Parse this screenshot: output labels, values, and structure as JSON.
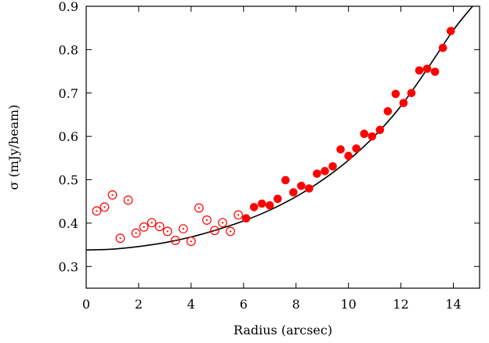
{
  "chart_data": {
    "type": "scatter",
    "xlabel": "Radius (arcsec)",
    "ylabel": "σ (mJy/beam)",
    "xlim": [
      0,
      15
    ],
    "ylim": [
      0.25,
      0.9
    ],
    "xticks": [
      0,
      2,
      4,
      6,
      8,
      10,
      12,
      14
    ],
    "yticks": [
      0.3,
      0.4,
      0.5,
      0.6,
      0.7,
      0.8,
      0.9
    ],
    "xtick_labels": [
      "0",
      "2",
      "4",
      "6",
      "8",
      "10",
      "12",
      "14"
    ],
    "ytick_labels": [
      "0.3",
      "0.4",
      "0.5",
      "0.6",
      "0.7",
      "0.8",
      "0.9"
    ],
    "grid": false,
    "legend": false,
    "marker_color": "#ff0000",
    "fit_color": "#000000",
    "series": [
      {
        "marker": "open-circle-dot",
        "x": [
          0.4,
          0.7,
          1.0,
          1.3,
          1.6,
          1.9,
          2.2,
          2.5,
          2.8,
          3.1,
          3.4,
          3.7,
          4.0,
          4.3,
          4.6,
          4.9,
          5.2,
          5.5,
          5.8
        ],
        "y": [
          0.428,
          0.437,
          0.465,
          0.365,
          0.453,
          0.377,
          0.391,
          0.401,
          0.392,
          0.381,
          0.36,
          0.387,
          0.358,
          0.435,
          0.407,
          0.383,
          0.401,
          0.381,
          0.419
        ]
      },
      {
        "marker": "filled-circle",
        "x": [
          6.1,
          6.4,
          6.7,
          7.0,
          7.3,
          7.6,
          7.9,
          8.2,
          8.5,
          8.8,
          9.1,
          9.4,
          9.7,
          10.0,
          10.3,
          10.6,
          10.9,
          11.2,
          11.5,
          11.8,
          12.1,
          12.4,
          12.7,
          13.0,
          13.3,
          13.6,
          13.9
        ],
        "y": [
          0.411,
          0.437,
          0.445,
          0.441,
          0.456,
          0.499,
          0.471,
          0.486,
          0.48,
          0.514,
          0.52,
          0.531,
          0.57,
          0.555,
          0.572,
          0.606,
          0.6,
          0.615,
          0.658,
          0.698,
          0.677,
          0.7,
          0.752,
          0.756,
          0.749,
          0.804,
          0.843
        ]
      }
    ],
    "fit_curve": {
      "x": [
        0,
        1,
        2,
        3,
        4,
        5,
        6,
        7,
        8,
        9,
        10,
        11,
        12,
        13,
        14,
        14.8
      ],
      "y": [
        0.338,
        0.34,
        0.346,
        0.355,
        0.368,
        0.385,
        0.405,
        0.43,
        0.461,
        0.499,
        0.545,
        0.601,
        0.67,
        0.755,
        0.845,
        0.905
      ]
    }
  }
}
